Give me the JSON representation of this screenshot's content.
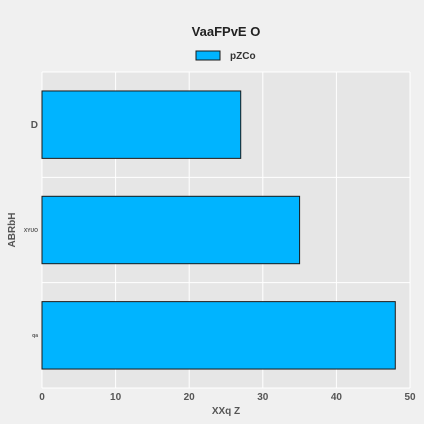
{
  "colors": {
    "background": "#f0f0f0",
    "plot_background": "#e6e6e6",
    "grid": "#ffffff",
    "bar_fill": "#00b4ff",
    "bar_edge": "#1a1a1a"
  },
  "chart_data": {
    "type": "bar",
    "orientation": "horizontal",
    "title": "VaaFPvE O",
    "xlabel": "XXq Z",
    "ylabel": "ABRbH",
    "categories": [
      "D",
      "XYUO",
      "qa"
    ],
    "series": [
      {
        "name": "pZCo",
        "values": [
          27,
          35,
          48
        ]
      }
    ],
    "xlim": [
      0,
      50
    ],
    "xticks": [
      "0",
      "10",
      "20",
      "30",
      "40",
      "50"
    ],
    "grid": true,
    "legend_position": "top-center"
  }
}
